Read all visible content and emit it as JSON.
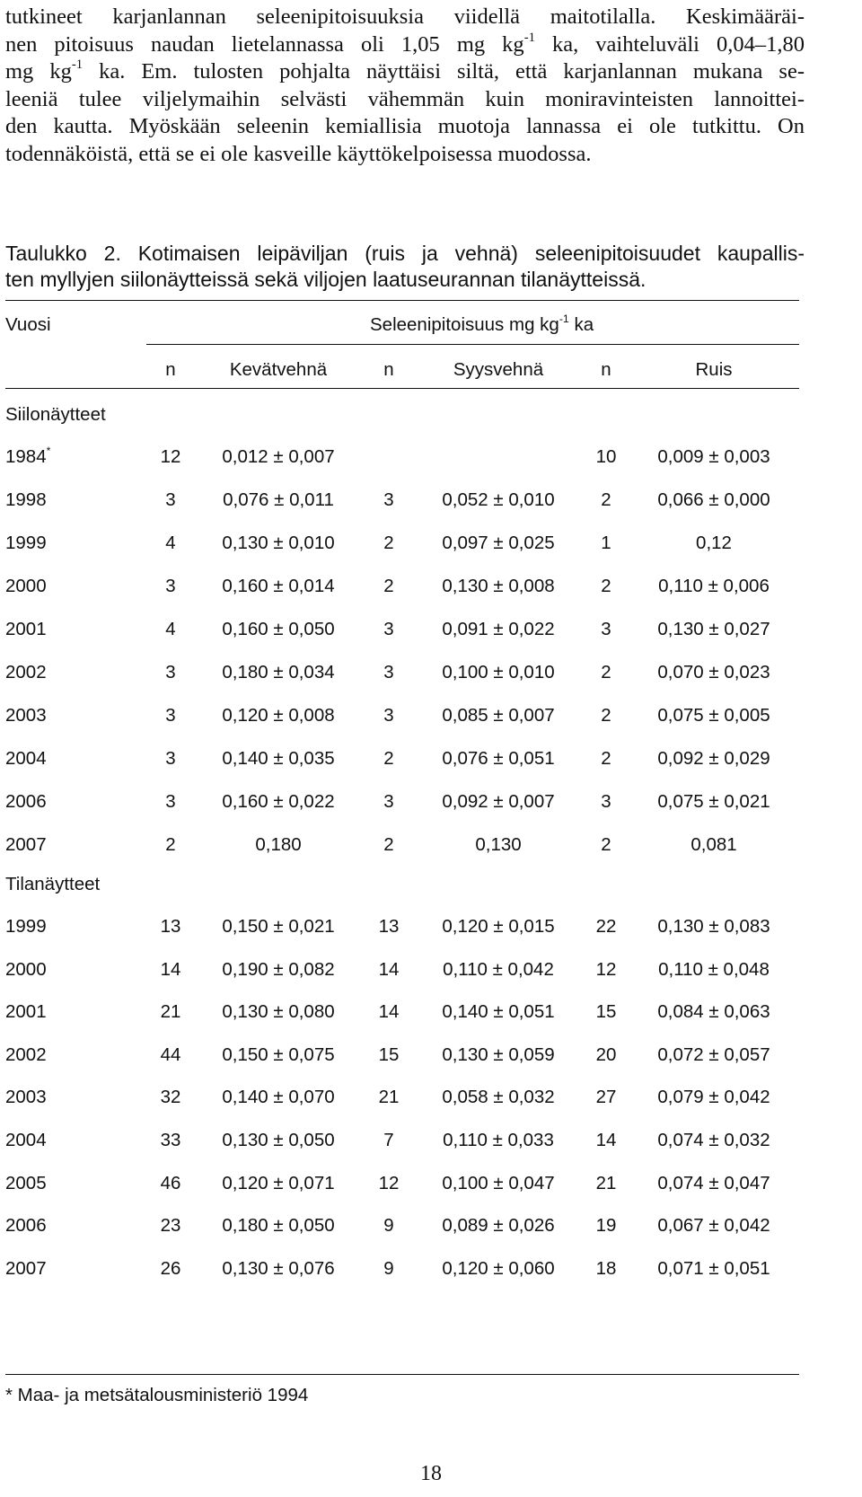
{
  "paragraph": {
    "line1": "tutkineet karjanlannan seleenipitoisuuksia viidellä maitotilalla. Keskimääräi-",
    "line2a": "nen pitoisuus naudan lietelannassa oli 1,05 mg kg",
    "line2sup": "-1",
    "line2b": " ka, vaihteluväli 0,04–1,80",
    "line3a": "mg kg",
    "line3sup": "-1",
    "line3b": " ka. Em. tulosten pohjalta näyttäisi siltä, että karjanlannan mukana se-",
    "line4": "leeniä tulee viljelymaihin selvästi vähemmän kuin moniravinteisten lannoittei-",
    "line5": "den kautta. Myöskään seleenin kemiallisia muotoja lannassa ei ole tutkittu. On",
    "line6": "todennäköistä, että se ei ole kasveille käyttökelpoisessa muodossa."
  },
  "caption": {
    "line1": "Taulukko 2. Kotimaisen leipäviljan (ruis ja vehnä) seleenipitoisuudet kaupallis-",
    "line2": "ten myllyjen siilonäytteissä sekä viljojen laatuseurannan tilanäytteissä."
  },
  "table": {
    "year_header": "Vuosi",
    "unit_header_a": "Seleenipitoisuus mg kg",
    "unit_header_sup": "-1",
    "unit_header_b": " ka",
    "columns": {
      "n1": "n",
      "spring_wheat": "Kevätvehnä",
      "n2": "n",
      "winter_wheat": "Syysvehnä",
      "n3": "n",
      "rye": "Ruis"
    },
    "section_silo": "Siilonäytteet",
    "silo_rows": [
      {
        "year": "1984",
        "mark": "*",
        "n1": "12",
        "v1": "0,012 ± 0,007",
        "n2": "",
        "v2": "",
        "n3": "10",
        "v3": "0,009 ± 0,003"
      },
      {
        "year": "1998",
        "mark": "",
        "n1": "3",
        "v1": "0,076 ± 0,011",
        "n2": "3",
        "v2": "0,052 ± 0,010",
        "n3": "2",
        "v3": "0,066 ± 0,000"
      },
      {
        "year": "1999",
        "mark": "",
        "n1": "4",
        "v1": "0,130 ± 0,010",
        "n2": "2",
        "v2": "0,097 ± 0,025",
        "n3": "1",
        "v3": "0,12"
      },
      {
        "year": "2000",
        "mark": "",
        "n1": "3",
        "v1": "0,160 ± 0,014",
        "n2": "2",
        "v2": "0,130 ± 0,008",
        "n3": "2",
        "v3": "0,110 ± 0,006"
      },
      {
        "year": "2001",
        "mark": "",
        "n1": "4",
        "v1": "0,160 ± 0,050",
        "n2": "3",
        "v2": "0,091 ± 0,022",
        "n3": "3",
        "v3": "0,130 ± 0,027"
      },
      {
        "year": "2002",
        "mark": "",
        "n1": "3",
        "v1": "0,180 ± 0,034",
        "n2": "3",
        "v2": "0,100 ± 0,010",
        "n3": "2",
        "v3": "0,070 ± 0,023"
      },
      {
        "year": "2003",
        "mark": "",
        "n1": "3",
        "v1": "0,120 ± 0,008",
        "n2": "3",
        "v2": "0,085 ± 0,007",
        "n3": "2",
        "v3": "0,075 ± 0,005"
      },
      {
        "year": "2004",
        "mark": "",
        "n1": "3",
        "v1": "0,140 ± 0,035",
        "n2": "2",
        "v2": "0,076 ± 0,051",
        "n3": "2",
        "v3": "0,092 ± 0,029"
      },
      {
        "year": "2006",
        "mark": "",
        "n1": "3",
        "v1": "0,160 ± 0,022",
        "n2": "3",
        "v2": "0,092 ± 0,007",
        "n3": "3",
        "v3": "0,075 ± 0,021"
      },
      {
        "year": "2007",
        "mark": "",
        "n1": "2",
        "v1": "0,180",
        "n2": "2",
        "v2": "0,130",
        "n3": "2",
        "v3": "0,081"
      }
    ],
    "section_farm": "Tilanäytteet",
    "farm_rows": [
      {
        "year": "1999",
        "mark": "",
        "n1": "13",
        "v1": "0,150 ± 0,021",
        "n2": "13",
        "v2": "0,120 ± 0,015",
        "n3": "22",
        "v3": "0,130 ± 0,083"
      },
      {
        "year": "2000",
        "mark": "",
        "n1": "14",
        "v1": "0,190 ± 0,082",
        "n2": "14",
        "v2": "0,110 ± 0,042",
        "n3": "12",
        "v3": "0,110 ± 0,048"
      },
      {
        "year": "2001",
        "mark": "",
        "n1": "21",
        "v1": "0,130 ± 0,080",
        "n2": "14",
        "v2": "0,140 ± 0,051",
        "n3": "15",
        "v3": "0,084 ± 0,063"
      },
      {
        "year": "2002",
        "mark": "",
        "n1": "44",
        "v1": "0,150 ± 0,075",
        "n2": "15",
        "v2": "0,130 ± 0,059",
        "n3": "20",
        "v3": "0,072 ± 0,057"
      },
      {
        "year": "2003",
        "mark": "",
        "n1": "32",
        "v1": "0,140 ± 0,070",
        "n2": "21",
        "v2": "0,058 ± 0,032",
        "n3": "27",
        "v3": "0,079 ± 0,042"
      },
      {
        "year": "2004",
        "mark": "",
        "n1": "33",
        "v1": "0,130 ± 0,050",
        "n2": "7",
        "v2": "0,110 ± 0,033",
        "n3": "14",
        "v3": "0,074 ± 0,032"
      },
      {
        "year": "2005",
        "mark": "",
        "n1": "46",
        "v1": "0,120 ± 0,071",
        "n2": "12",
        "v2": "0,100 ± 0,047",
        "n3": "21",
        "v3": "0,074 ± 0,047"
      },
      {
        "year": "2006",
        "mark": "",
        "n1": "23",
        "v1": "0,180 ± 0,050",
        "n2": "9",
        "v2": "0,089 ± 0,026",
        "n3": "19",
        "v3": "0,067 ± 0,042"
      },
      {
        "year": "2007",
        "mark": "",
        "n1": "26",
        "v1": "0,130 ± 0,076",
        "n2": "9",
        "v2": "0,120 ± 0,060",
        "n3": "18",
        "v3": "0,071 ± 0,051"
      }
    ]
  },
  "footnote": "* Maa- ja metsätalousministeriö 1994",
  "page_number": "18"
}
